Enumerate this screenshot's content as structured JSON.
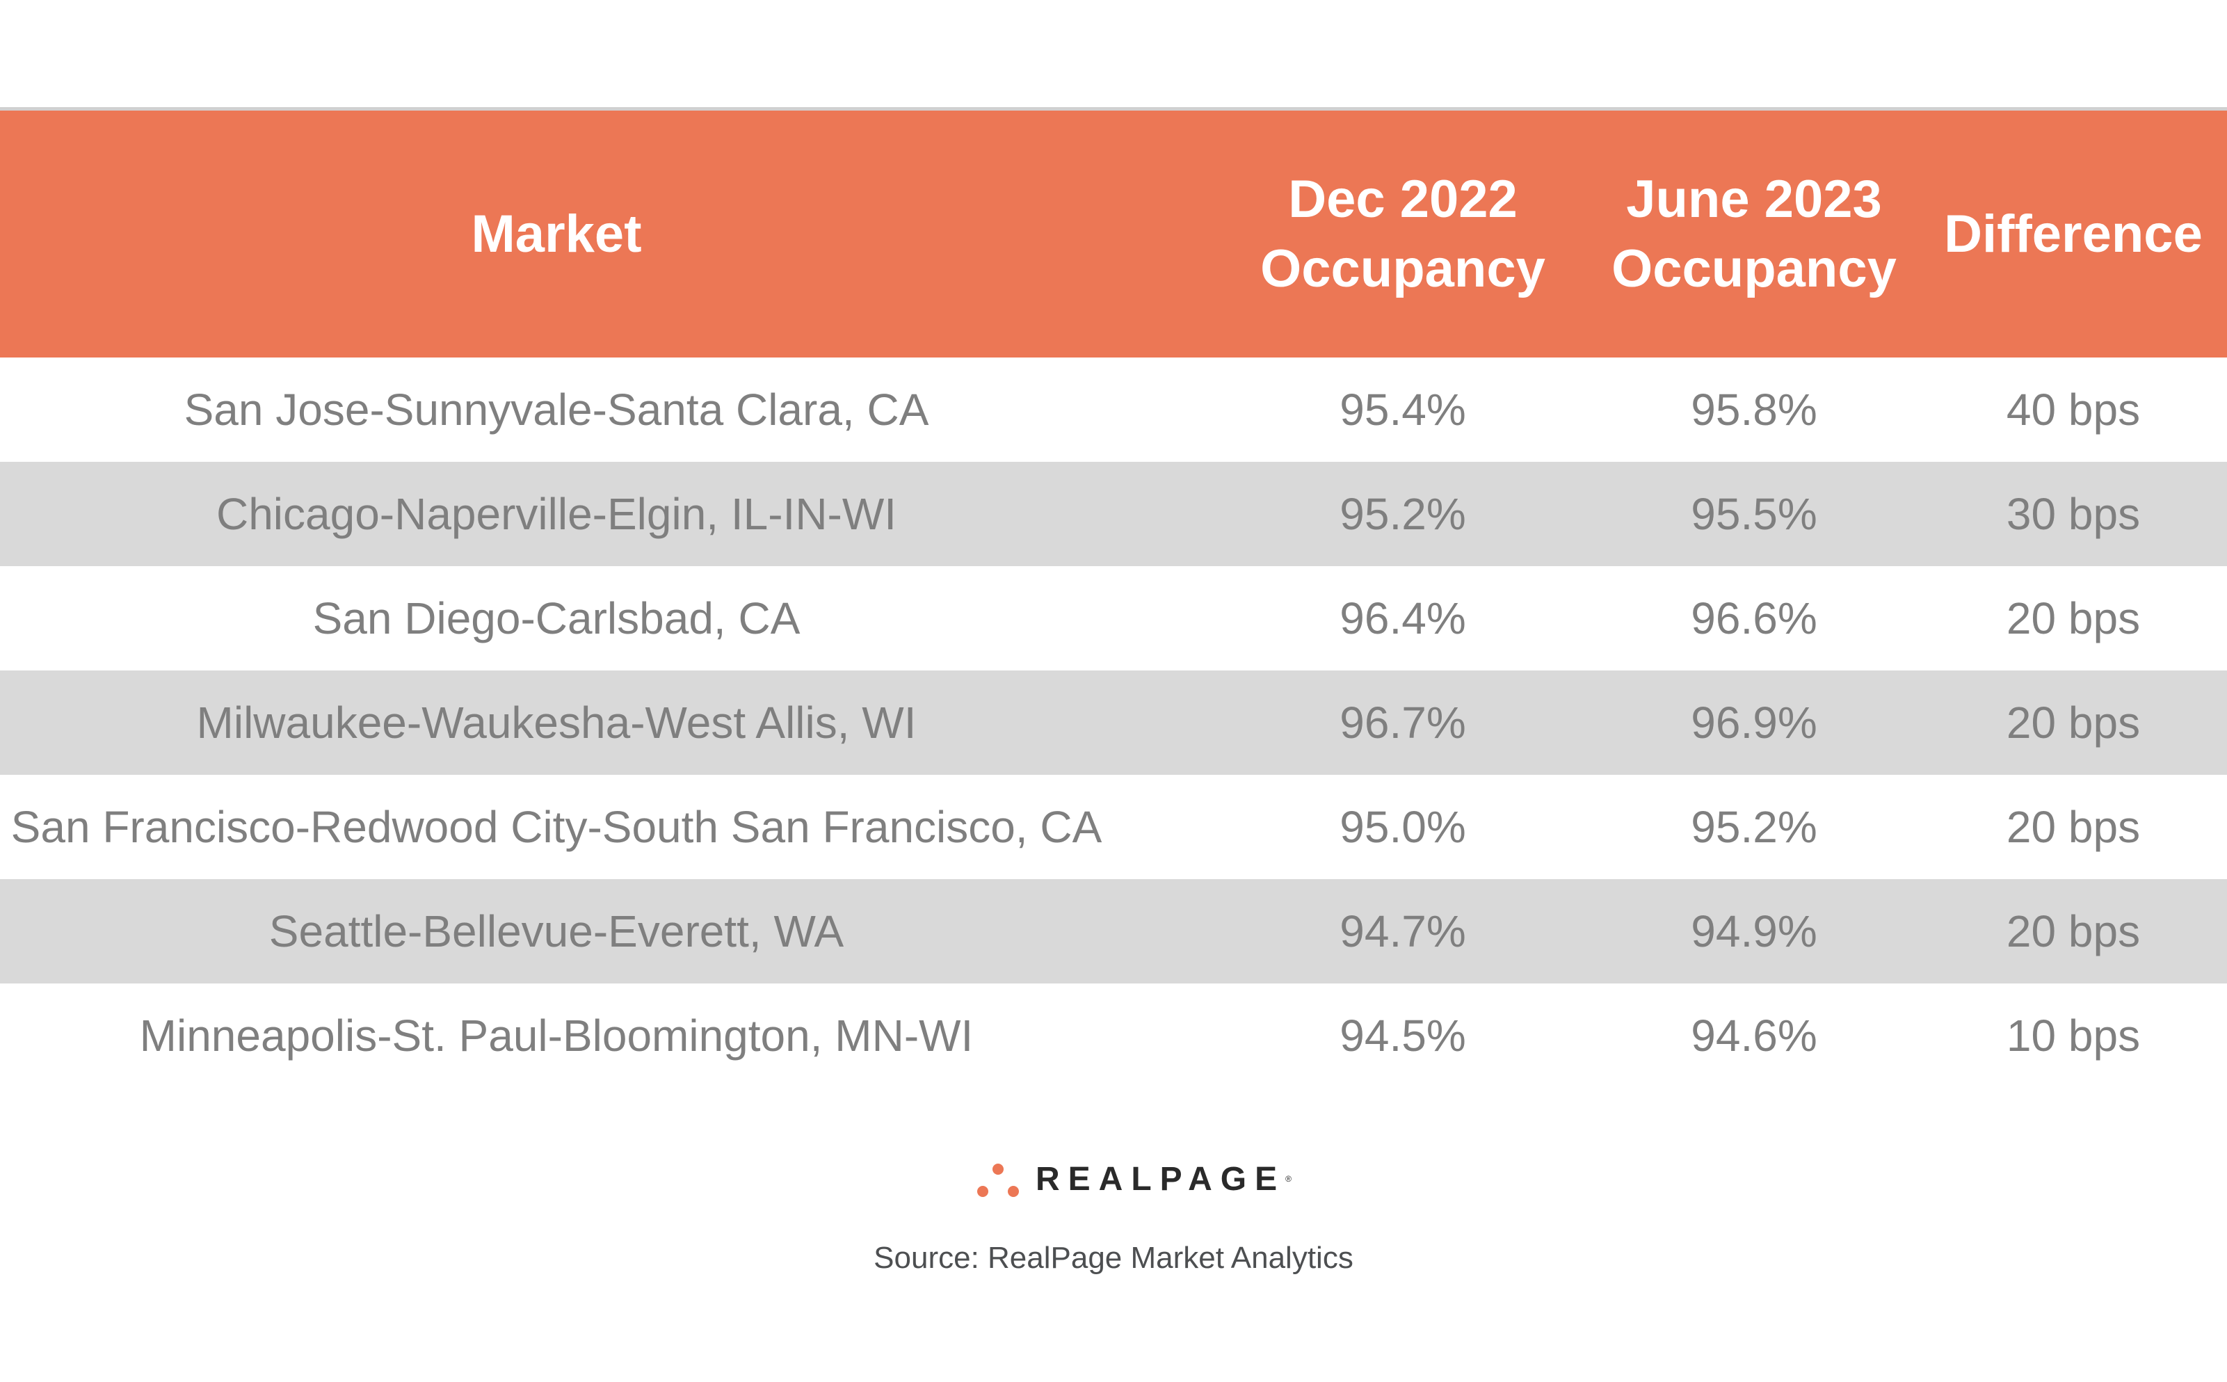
{
  "colors": {
    "header": "#ec7755",
    "stripe": "#d9d9d9",
    "text": "#7f7f7f"
  },
  "table": {
    "headers": [
      "Market",
      "Dec 2022 Occupancy",
      "June 2023 Occupancy",
      "Difference"
    ],
    "header_lines": {
      "dec": [
        "Dec 2022",
        "Occupancy"
      ],
      "june": [
        "June 2023",
        "Occupancy"
      ]
    },
    "rows": [
      {
        "market": "San Jose-Sunnyvale-Santa Clara, CA",
        "dec": "95.4%",
        "june": "95.8%",
        "diff": "40 bps"
      },
      {
        "market": "Chicago-Naperville-Elgin, IL-IN-WI",
        "dec": "95.2%",
        "june": "95.5%",
        "diff": "30 bps"
      },
      {
        "market": "San Diego-Carlsbad, CA",
        "dec": "96.4%",
        "june": "96.6%",
        "diff": "20 bps"
      },
      {
        "market": "Milwaukee-Waukesha-West Allis, WI",
        "dec": "96.7%",
        "june": "96.9%",
        "diff": "20 bps"
      },
      {
        "market": "San Francisco-Redwood City-South San Francisco, CA",
        "dec": "95.0%",
        "june": "95.2%",
        "diff": "20 bps"
      },
      {
        "market": "Seattle-Bellevue-Everett, WA",
        "dec": "94.7%",
        "june": "94.9%",
        "diff": "20 bps"
      },
      {
        "market": "Minneapolis-St. Paul-Bloomington, MN-WI",
        "dec": "94.5%",
        "june": "94.6%",
        "diff": "10 bps"
      }
    ]
  },
  "logo": {
    "text": "REALPAGE",
    "mark": "®"
  },
  "source": "Source: RealPage Market Analytics"
}
